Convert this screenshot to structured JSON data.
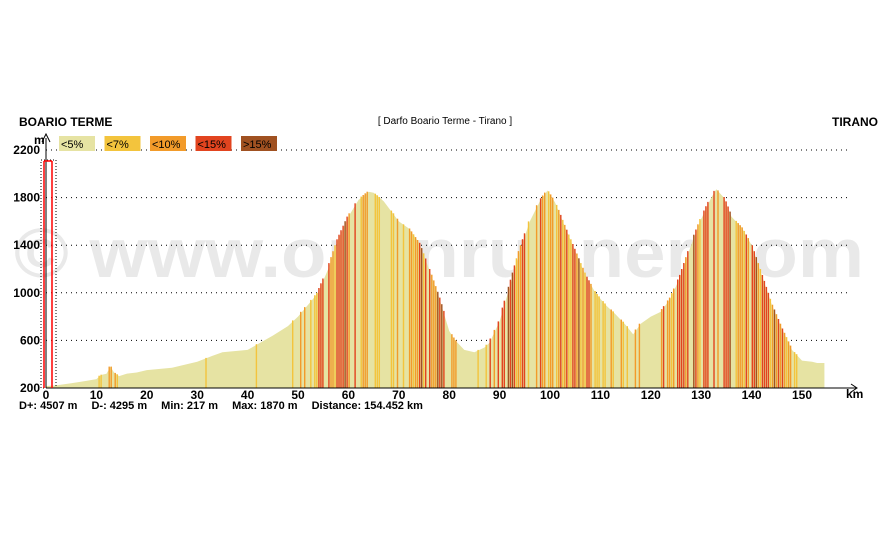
{
  "header": {
    "start": "BOARIO TERME",
    "end": "TIRANO",
    "route": "[ Darfo Boario Terme - Tirano ]"
  },
  "stats": {
    "gain": "D+: 4507 m",
    "loss": "D-: 4295 m",
    "min": "Min: 217 m",
    "max": "Max: 1870 m",
    "distance": "Distance: 154.452 km"
  },
  "watermark": "© www.openrunner.com",
  "colors": {
    "lt5": "#e6e3a3",
    "lt7": "#f3c43d",
    "lt10": "#f29b2a",
    "lt15": "#e2441f",
    "gt15": "#a05121",
    "cursor": "#ff0000"
  },
  "chart_data": {
    "type": "area",
    "xlabel": "km",
    "ylabel": "m",
    "xlim": [
      0,
      154.452
    ],
    "ylim": [
      200,
      2200
    ],
    "yticks": [
      200,
      600,
      1000,
      1400,
      1800,
      2200
    ],
    "xticks": [
      0,
      10,
      20,
      30,
      40,
      50,
      60,
      70,
      80,
      90,
      100,
      110,
      120,
      130,
      140,
      150
    ],
    "grid": "horizontal dotted",
    "legend": {
      "placement": "top-left",
      "entries": [
        {
          "label": "<5%",
          "color": "#e6e3a3"
        },
        {
          "label": "<7%",
          "color": "#f3c43d"
        },
        {
          "label": "<10%",
          "color": "#f29b2a"
        },
        {
          "label": "<15%",
          "color": "#e2441f"
        },
        {
          "label": ">15%",
          "color": "#a05121"
        }
      ]
    },
    "profile": {
      "km": [
        0,
        2,
        5,
        8,
        10,
        11,
        12,
        12.8,
        13.5,
        14.5,
        16,
        18,
        20,
        25,
        30,
        33,
        35,
        40,
        45,
        48,
        50,
        52,
        54,
        56,
        58,
        60,
        62,
        64,
        65,
        67,
        70,
        72,
        74,
        76,
        78,
        80,
        81,
        83,
        85,
        87,
        88,
        90,
        92,
        94,
        96,
        98,
        99.5,
        101,
        103,
        105,
        107,
        109,
        111,
        113,
        115,
        116.5,
        118,
        120,
        122,
        124,
        126,
        128,
        130,
        132,
        133,
        134.5,
        136,
        138,
        140,
        142,
        144,
        146,
        148,
        150,
        152,
        153,
        154.452
      ],
      "elevation": [
        217,
        222,
        240,
        260,
        275,
        310,
        320,
        380,
        330,
        300,
        320,
        330,
        350,
        370,
        420,
        470,
        500,
        520,
        640,
        720,
        800,
        900,
        1000,
        1200,
        1450,
        1640,
        1780,
        1850,
        1840,
        1770,
        1600,
        1540,
        1420,
        1200,
        960,
        680,
        610,
        520,
        500,
        540,
        580,
        760,
        1050,
        1350,
        1600,
        1770,
        1860,
        1760,
        1550,
        1350,
        1150,
        1000,
        900,
        820,
        730,
        650,
        740,
        800,
        840,
        960,
        1150,
        1400,
        1620,
        1800,
        1870,
        1800,
        1640,
        1550,
        1400,
        1150,
        900,
        700,
        520,
        430,
        420,
        410,
        410
      ]
    }
  }
}
